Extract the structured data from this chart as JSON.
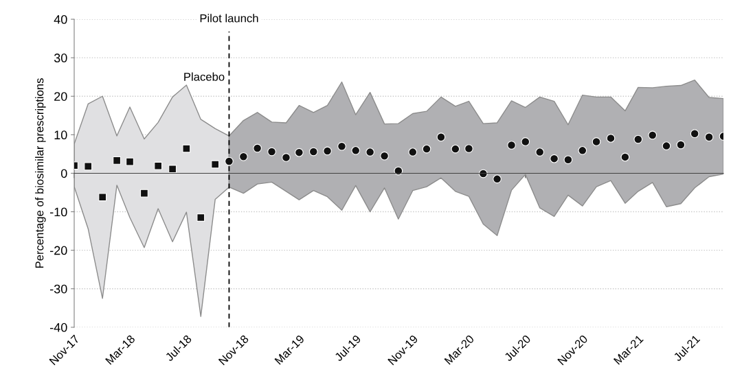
{
  "chart_data": {
    "type": "scatter",
    "ylabel": "Percentage of biosimilar prescriptions",
    "annotations": [
      "Placebo"
    ],
    "ylim": [
      -40,
      40
    ],
    "yticks": [
      -40,
      -30,
      -20,
      -10,
      0,
      10,
      20,
      30,
      40
    ],
    "xlim": [
      "2017-11",
      "2021-09"
    ],
    "xticks": [
      {
        "value": "2017-11",
        "label": "Nov-17"
      },
      {
        "value": "2018-03",
        "label": "Mar-18"
      },
      {
        "value": "2018-07",
        "label": "Jul-18"
      },
      {
        "value": "2018-11",
        "label": "Nov-18"
      },
      {
        "value": "2019-03",
        "label": "Mar-19"
      },
      {
        "value": "2019-07",
        "label": "Jul-19"
      },
      {
        "value": "2019-11",
        "label": "Nov-19"
      },
      {
        "value": "2020-03",
        "label": "Mar-20"
      },
      {
        "value": "2020-07",
        "label": "Jul-20"
      },
      {
        "value": "2020-11",
        "label": "Nov-20"
      },
      {
        "value": "2021-03",
        "label": "Mar-21"
      },
      {
        "value": "2021-07",
        "label": "Jul-21"
      }
    ],
    "grid": "y",
    "ref_lines": [
      {
        "axis": "x",
        "value": "2018-10",
        "label": "Pilot launch",
        "color": "#000000",
        "line_style": "dashed"
      }
    ],
    "series": [
      {
        "marker": "square",
        "color": "#111111",
        "x": [
          "2017-11",
          "2017-12",
          "2018-01",
          "2018-02",
          "2018-03",
          "2018-04",
          "2018-05",
          "2018-06",
          "2018-07",
          "2018-08",
          "2018-09",
          "2018-10"
        ],
        "values": [
          2.0,
          1.8,
          -6.2,
          3.3,
          3.0,
          -5.2,
          1.9,
          1.1,
          6.4,
          -11.5,
          2.3,
          null
        ],
        "upper": [
          7.6,
          18.0,
          20.0,
          9.7,
          17.2,
          8.9,
          13.2,
          19.8,
          22.9,
          14.0,
          11.6,
          9.7
        ],
        "lower": [
          -3.5,
          -14.4,
          -32.5,
          -3.1,
          -11.5,
          -19.3,
          -9.2,
          -17.8,
          -10.1,
          -37.2,
          -6.8,
          -3.6
        ]
      },
      {
        "marker": "circle",
        "color": "#111111",
        "x": [
          "2018-10",
          "2018-11",
          "2018-12",
          "2019-01",
          "2019-02",
          "2019-03",
          "2019-04",
          "2019-05",
          "2019-06",
          "2019-07",
          "2019-08",
          "2019-09",
          "2019-10",
          "2019-11",
          "2019-12",
          "2020-01",
          "2020-02",
          "2020-03",
          "2020-04",
          "2020-05",
          "2020-06",
          "2020-07",
          "2020-08",
          "2020-09",
          "2020-10",
          "2020-11",
          "2020-12",
          "2021-01",
          "2021-02",
          "2021-03",
          "2021-04",
          "2021-05",
          "2021-06",
          "2021-07",
          "2021-08",
          "2021-09"
        ],
        "values": [
          3.1,
          4.3,
          6.5,
          5.6,
          4.1,
          5.4,
          5.6,
          5.8,
          7.0,
          5.9,
          5.5,
          4.5,
          0.6,
          5.5,
          6.3,
          9.4,
          6.3,
          6.4,
          -0.1,
          -1.5,
          7.3,
          8.2,
          5.5,
          3.8,
          3.5,
          5.9,
          8.2,
          9.1,
          4.2,
          8.8,
          9.9,
          7.1,
          7.4,
          10.3,
          9.4,
          9.6
        ],
        "upper": [
          9.7,
          13.7,
          15.8,
          13.3,
          13.1,
          17.6,
          15.8,
          17.6,
          23.7,
          15.2,
          21.0,
          12.8,
          12.9,
          15.5,
          16.1,
          19.8,
          17.4,
          18.7,
          12.9,
          13.1,
          18.8,
          17.1,
          19.8,
          18.7,
          12.6,
          20.3,
          19.8,
          19.8,
          16.2,
          22.3,
          22.2,
          22.6,
          22.8,
          24.2,
          19.7,
          19.4
        ],
        "lower": [
          -3.6,
          -5.2,
          -2.8,
          -2.3,
          -4.7,
          -6.9,
          -4.5,
          -6.1,
          -9.6,
          -3.2,
          -10.0,
          -3.8,
          -11.9,
          -4.5,
          -3.5,
          -1.2,
          -4.7,
          -6.0,
          -13.2,
          -16.2,
          -4.4,
          -0.3,
          -9.0,
          -11.2,
          -5.7,
          -8.5,
          -3.5,
          -1.9,
          -7.8,
          -4.7,
          -2.4,
          -8.7,
          -7.9,
          -3.8,
          -0.9,
          -0.2
        ]
      }
    ]
  }
}
